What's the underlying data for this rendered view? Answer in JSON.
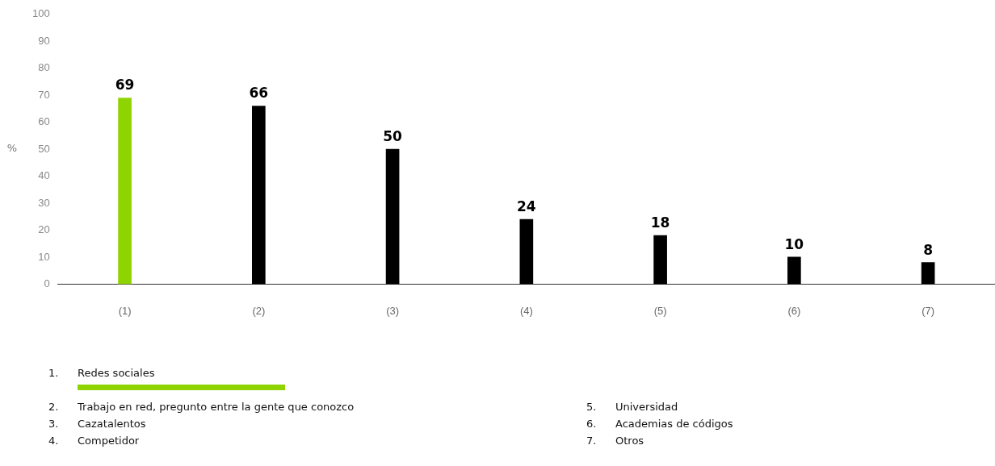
{
  "chart_data": {
    "type": "bar",
    "categories": [
      "(1)",
      "(2)",
      "(3)",
      "(4)",
      "(5)",
      "(6)",
      "(7)"
    ],
    "values": [
      69,
      66,
      50,
      24,
      18,
      10,
      8
    ],
    "colors": [
      "#8fd400",
      "#000000",
      "#000000",
      "#000000",
      "#000000",
      "#000000",
      "#000000"
    ],
    "ylabel": "%",
    "ylim": [
      0,
      100
    ],
    "yticks": [
      0,
      10,
      20,
      30,
      40,
      50,
      60,
      70,
      80,
      90,
      100
    ],
    "grid": false,
    "legend": false,
    "data_labels": true,
    "annotations": [
      "1. Redes sociales",
      "2. Trabajo en red, pregunto entre la gente que conozco",
      "3. Cazatalentos",
      "4. Competidor",
      "5. Universidad",
      "6. Academias de códigos",
      "7. Otros"
    ]
  }
}
